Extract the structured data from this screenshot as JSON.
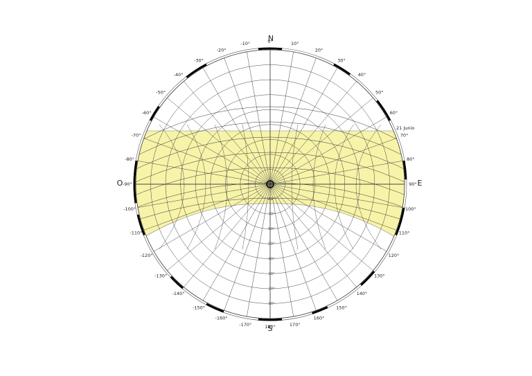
{
  "cardinals": {
    "north": "N",
    "east": "E",
    "south": "S",
    "west": "O"
  },
  "azimuth_labels_east": [
    "0°",
    "10°",
    "20°",
    "30°",
    "40°",
    "50°",
    "60°",
    "70°",
    "80°",
    "90°",
    "100°",
    "110°",
    "120°",
    "130°",
    "140°",
    "150°",
    "160°",
    "170°",
    "180°"
  ],
  "azimuth_labels_west": [
    "-10°",
    "-20°",
    "-30°",
    "-40°",
    "-50°",
    "-60°",
    "-70°",
    "-80°",
    "-90°",
    "-100°",
    "-110°",
    "-120°",
    "-130°",
    "-140°",
    "-150°",
    "-160°",
    "-170°"
  ],
  "altitude_labels": [
    "10°",
    "20°",
    "30°",
    "40°",
    "50°",
    "60°",
    "70°",
    "80°"
  ],
  "date_label": "21 Junio"
}
